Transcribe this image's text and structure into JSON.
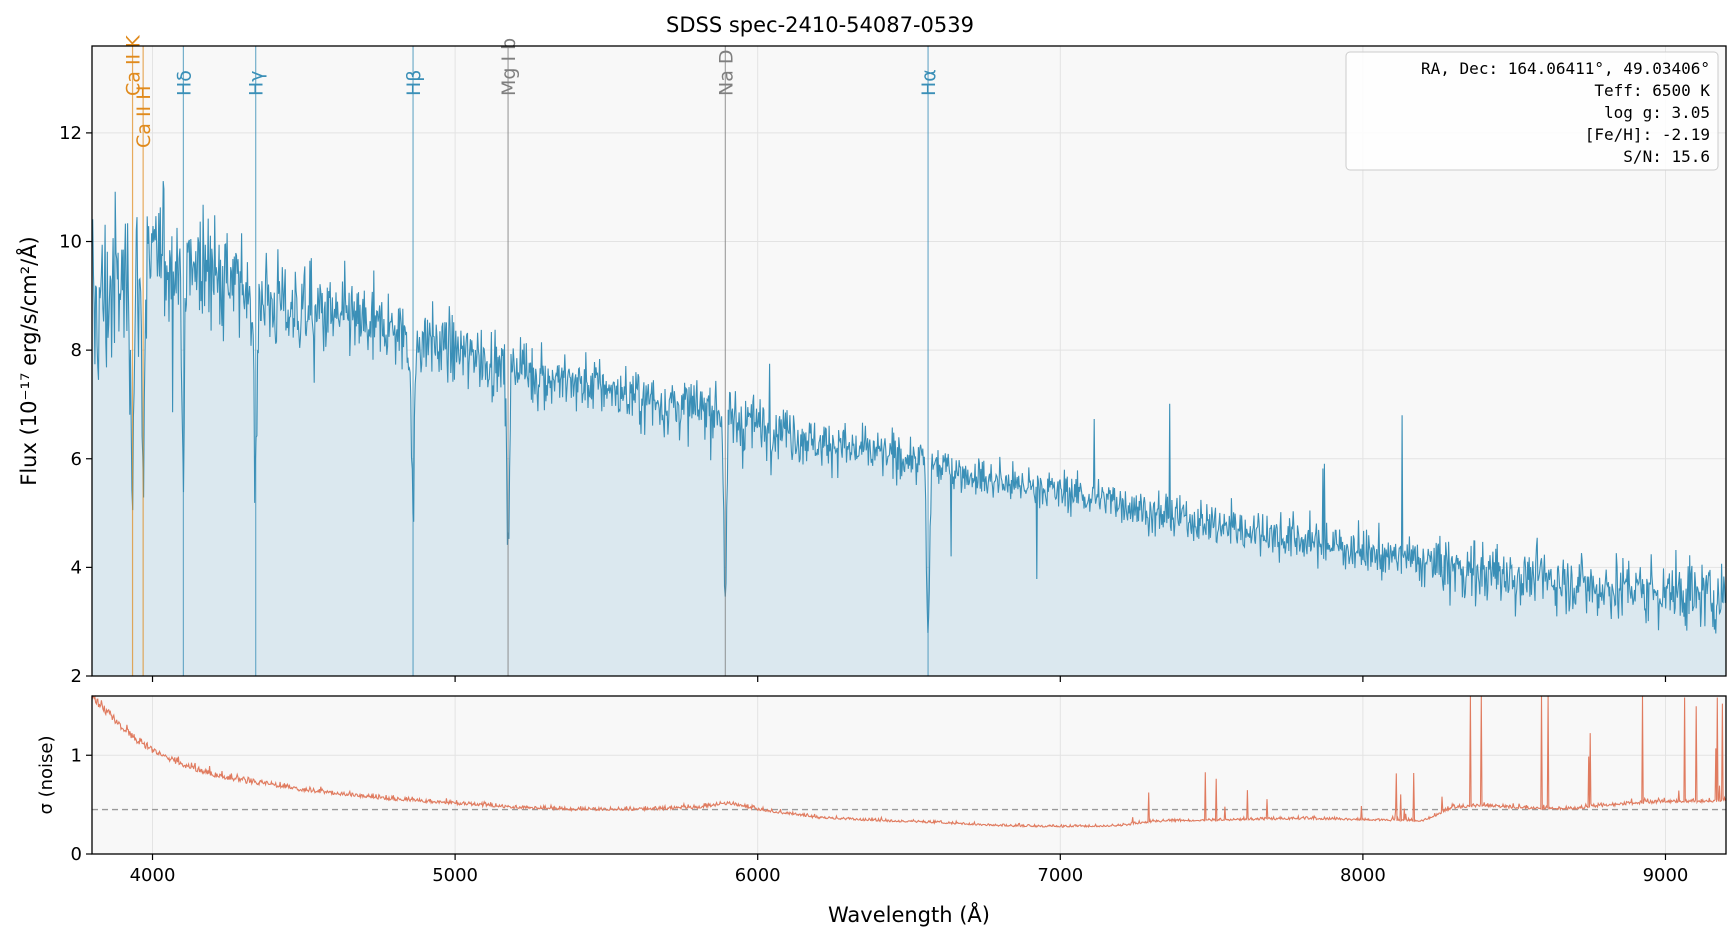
{
  "chart_data": [
    {
      "type": "line",
      "title": "SDSS spec-2410-54087-0539",
      "xlabel": "",
      "ylabel": "Flux (10⁻¹⁷ erg/s/cm²/Å)",
      "xlim": [
        3800,
        9200
      ],
      "ylim": [
        2,
        13.6
      ],
      "yticks": [
        2,
        4,
        6,
        8,
        10,
        12
      ],
      "grid": true,
      "colors": {
        "line": "#3a8fb7",
        "fill": "#dbe8ef",
        "background": "#f8f8f8"
      },
      "series": [
        {
          "x": [
            3800,
            3850,
            3900,
            3950,
            4000,
            4050,
            4100,
            4200,
            4300,
            4400,
            4500,
            4600,
            4700,
            4800,
            4900,
            5000,
            5100,
            5200,
            5300,
            5400,
            5500,
            5600,
            5700,
            5800,
            5900,
            6000,
            6100,
            6200,
            6300,
            6400,
            6500,
            6600,
            6700,
            6800,
            6900,
            7000,
            7100,
            7200,
            7300,
            7400,
            7500,
            7600,
            7700,
            7800,
            7900,
            8000,
            8100,
            8200,
            8300,
            8400,
            8500,
            8600,
            8700,
            8800,
            8900,
            9000,
            9100,
            9200
          ],
          "y": [
            8.6,
            9.0,
            9.2,
            9.4,
            9.6,
            9.7,
            9.6,
            9.4,
            9.1,
            8.9,
            8.7,
            8.6,
            8.5,
            8.3,
            8.2,
            8.0,
            7.8,
            7.7,
            7.5,
            7.4,
            7.3,
            7.1,
            7.0,
            6.9,
            6.8,
            6.6,
            6.5,
            6.3,
            6.2,
            6.1,
            6.0,
            5.9,
            5.7,
            5.6,
            5.5,
            5.4,
            5.3,
            5.2,
            5.0,
            4.9,
            4.8,
            4.7,
            4.6,
            4.5,
            4.4,
            4.3,
            4.2,
            4.1,
            4.0,
            3.9,
            3.85,
            3.8,
            3.7,
            3.65,
            3.6,
            3.55,
            3.5,
            3.45
          ]
        }
      ],
      "reference_lines": [
        {
          "label": "Ca II K",
          "x": 3934,
          "color": "#e08a1c"
        },
        {
          "label": "Ca II H",
          "x": 3969,
          "color": "#e08a1c"
        },
        {
          "label": "Hδ",
          "x": 4102,
          "color": "#3a8fb7"
        },
        {
          "label": "Hγ",
          "x": 4341,
          "color": "#3a8fb7"
        },
        {
          "label": "Hβ",
          "x": 4861,
          "color": "#3a8fb7"
        },
        {
          "label": "Mg I b",
          "x": 5175,
          "color": "#7f7f7f"
        },
        {
          "label": "Na D",
          "x": 5893,
          "color": "#7f7f7f"
        },
        {
          "label": "Hα",
          "x": 6563,
          "color": "#3a8fb7"
        }
      ],
      "annotation": {
        "lines": [
          "RA, Dec: 164.06411°, 49.03406°",
          "Teff: 6500 K",
          "log g: 3.05",
          "[Fe/H]: -2.19",
          "S/N: 15.6"
        ],
        "placement": "top-right"
      }
    },
    {
      "type": "line",
      "title": "",
      "xlabel": "Wavelength (Å)",
      "ylabel": "σ (noise)",
      "xlim": [
        3800,
        9200
      ],
      "ylim": [
        0,
        1.6
      ],
      "xticks": [
        4000,
        5000,
        6000,
        7000,
        8000,
        9000
      ],
      "yticks": [
        0,
        1
      ],
      "grid": true,
      "colors": {
        "line": "#e07b5f",
        "reference": "#999999",
        "background": "#f8f8f8"
      },
      "series": [
        {
          "x": [
            3800,
            3850,
            3900,
            3950,
            4000,
            4100,
            4200,
            4300,
            4400,
            4500,
            4600,
            4700,
            4800,
            4900,
            5000,
            5200,
            5400,
            5600,
            5800,
            5900,
            6000,
            6100,
            6200,
            6400,
            6600,
            6800,
            7000,
            7200,
            7300,
            7400,
            7600,
            7800,
            8000,
            8200,
            8300,
            8400,
            8500,
            8600,
            8700,
            8800,
            8900,
            9000,
            9100,
            9200
          ],
          "y": [
            1.55,
            1.4,
            1.25,
            1.12,
            1.02,
            0.88,
            0.78,
            0.72,
            0.68,
            0.63,
            0.6,
            0.57,
            0.54,
            0.52,
            0.5,
            0.46,
            0.44,
            0.44,
            0.46,
            0.5,
            0.44,
            0.4,
            0.36,
            0.33,
            0.31,
            0.28,
            0.27,
            0.28,
            0.32,
            0.33,
            0.34,
            0.35,
            0.34,
            0.33,
            0.46,
            0.48,
            0.46,
            0.45,
            0.45,
            0.48,
            0.5,
            0.52,
            0.52,
            0.53
          ]
        }
      ],
      "reference_value": 0.45
    }
  ]
}
